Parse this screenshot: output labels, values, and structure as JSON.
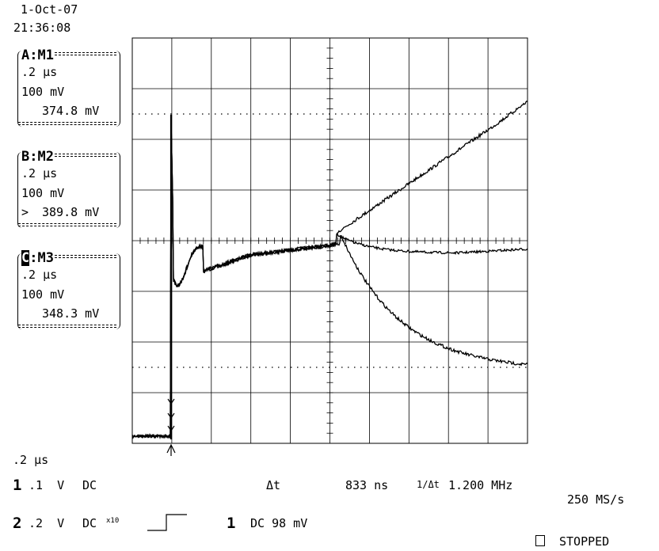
{
  "header": {
    "date": "1-Oct-07",
    "time": "21:36:08"
  },
  "memories": [
    {
      "tag": "A",
      "name": "M1",
      "timebase": ".2 µs",
      "volts": "100 mV",
      "value": "374.8 mV",
      "marker": "",
      "highlight": false
    },
    {
      "tag": "B",
      "name": "M2",
      "timebase": ".2 µs",
      "volts": "100 mV",
      "value": "389.8 mV",
      "marker": ">",
      "highlight": false
    },
    {
      "tag": "C",
      "name": "M3",
      "timebase": ".2 µs",
      "volts": "100 mV",
      "value": "348.3 mV",
      "marker": "",
      "highlight": true
    }
  ],
  "footer": {
    "timebase": ".2 µs",
    "ch1_num": "1",
    "ch1_scale": ".1  V",
    "ch1_coupling": "DC",
    "delta_t_label": "Δt",
    "delta_t_value": "833 ns",
    "inv_delta_t_label": "1/Δt",
    "inv_delta_t_value": "1.200 MHz",
    "sample_rate": "250 MS/s",
    "ch2_num": "2",
    "ch2_scale": ".2  V",
    "ch2_coupling": "DC",
    "ch2_probe": "x10",
    "trigger_source": "1",
    "trigger_level": "DC 98 mV",
    "status": "STOPPED"
  },
  "colors": {
    "trace": "#000000",
    "background": "#ffffff",
    "grid": "#000000"
  }
}
